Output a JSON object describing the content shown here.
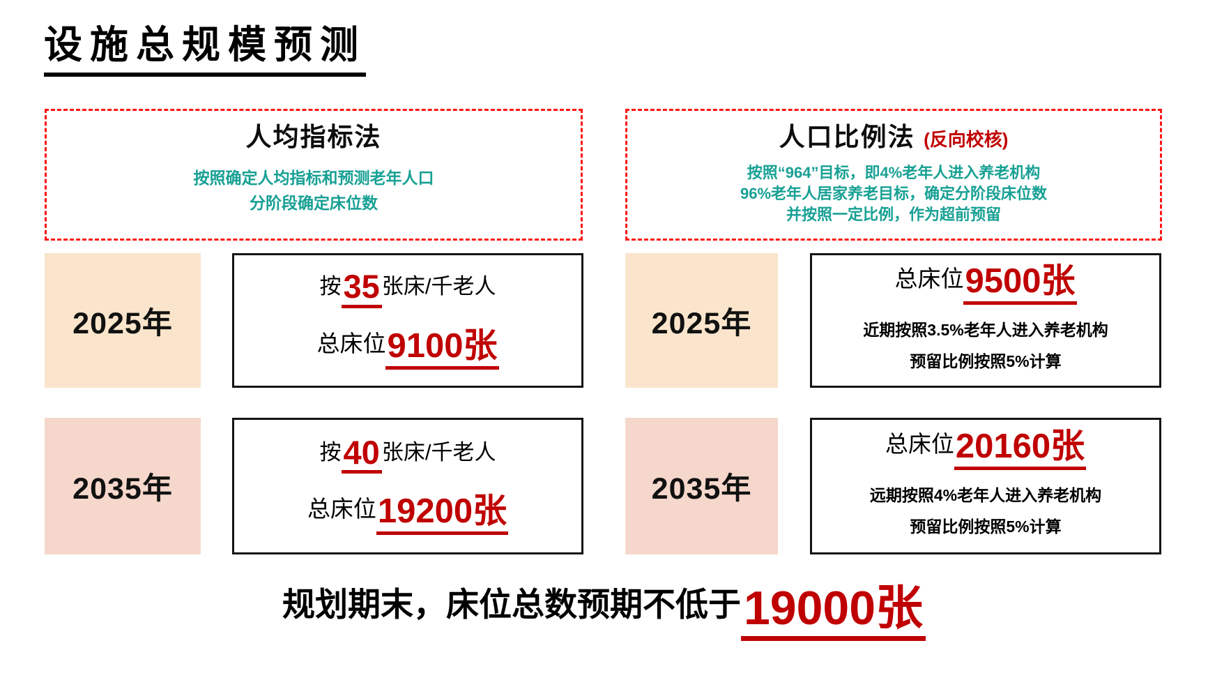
{
  "title": "设施总规模预测",
  "per_capita_method": {
    "title": "人均指标法",
    "subtitle_lines": [
      "按照确定人均指标和预测老年人口",
      "分阶段确定床位数"
    ],
    "rows": [
      {
        "year": "2025年",
        "rate_prefix": "按",
        "rate_value": "35",
        "rate_unit": "张床/千老人",
        "total_label": "总床位",
        "total_value": "9100张"
      },
      {
        "year": "2035年",
        "rate_prefix": "按",
        "rate_value": "40",
        "rate_unit": "张床/千老人",
        "total_label": "总床位",
        "total_value": "19200张"
      }
    ]
  },
  "population_ratio_method": {
    "title": "人口比例法",
    "title_note": "(反向校核)",
    "subtitle_lines": [
      "按照“964”目标，即4%老年人进入养老机构",
      "96%老年人居家养老目标，确定分阶段床位数",
      "并按照一定比例，作为超前预留"
    ],
    "rows": [
      {
        "year": "2025年",
        "total_label": "总床位",
        "total_value": "9500张",
        "notes": [
          "近期按照3.5%老年人进入养老机构",
          "预留比例按照5%计算"
        ]
      },
      {
        "year": "2035年",
        "total_label": "总床位",
        "total_value": "20160张",
        "notes": [
          "远期按照4%老年人进入养老机构",
          "预留比例按照5%计算"
        ]
      }
    ]
  },
  "conclusion": {
    "prefix": "规划期末，床位总数预期不低于",
    "value": "19000张"
  },
  "colors": {
    "accent_red": "#C00000",
    "dashed_border_red": "#FF1515",
    "teal_text": "#17A094",
    "year_2025_bg": "#FAE5CC",
    "year_2035_bg": "#F6D7CB"
  }
}
